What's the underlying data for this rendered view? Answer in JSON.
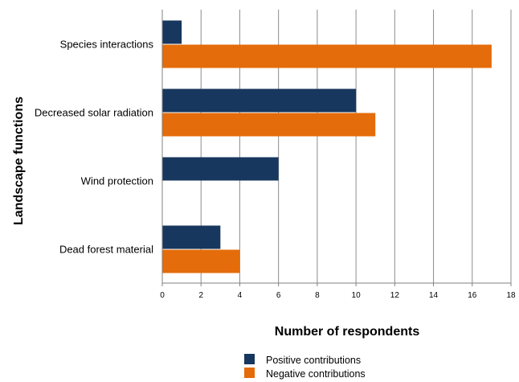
{
  "chart_data": {
    "type": "bar",
    "orientation": "horizontal",
    "categories": [
      "Species interactions",
      "Decreased solar radiation",
      "Wind protection",
      "Dead forest material"
    ],
    "series": [
      {
        "name": "Positive contributions",
        "values": [
          1,
          10,
          6,
          3
        ],
        "color": "#17375e"
      },
      {
        "name": "Negative contributions",
        "values": [
          17,
          11,
          0,
          4
        ],
        "color": "#e46c0a"
      }
    ],
    "xlabel": "Number of respondents",
    "ylabel": "Landscape functions",
    "xlim": [
      0,
      18
    ],
    "xticks": [
      "0",
      "2",
      "4",
      "6",
      "8",
      "10",
      "12",
      "14",
      "16",
      "18"
    ],
    "grid": "vertical",
    "legend": "bottom"
  }
}
